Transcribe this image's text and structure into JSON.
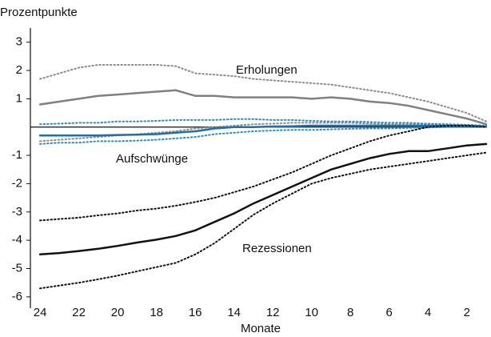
{
  "chart_data": {
    "type": "line",
    "y_label": "Prozentpunkte",
    "x_label": "Monate",
    "x": [
      24,
      23,
      22,
      21,
      20,
      19,
      18,
      17,
      16,
      15,
      14,
      13,
      12,
      11,
      10,
      9,
      8,
      7,
      6,
      5,
      4,
      3,
      2,
      1
    ],
    "xlim": [
      24.5,
      1
    ],
    "xticks": [
      24,
      22,
      20,
      18,
      16,
      14,
      12,
      10,
      8,
      6,
      4,
      2
    ],
    "ylim": [
      -6.4,
      3.5
    ],
    "yticks": [
      3,
      2,
      1,
      -1,
      -2,
      -3,
      -4,
      -5,
      -6
    ],
    "series": [
      {
        "color": "#8c8c8c",
        "style": "dotted",
        "values": [
          1.7,
          1.9,
          2.1,
          2.2,
          2.2,
          2.2,
          2.2,
          2.15,
          1.9,
          1.85,
          1.8,
          1.7,
          1.65,
          1.6,
          1.55,
          1.5,
          1.4,
          1.3,
          1.2,
          1.05,
          0.9,
          0.7,
          0.5,
          0.2
        ]
      },
      {
        "color": "#8c8c8c",
        "style": "dotted",
        "values": [
          -0.5,
          -0.45,
          -0.4,
          -0.35,
          -0.3,
          -0.25,
          -0.2,
          -0.15,
          -0.05,
          0,
          0.05,
          0.1,
          0.12,
          0.15,
          0.15,
          0.15,
          0.15,
          0.12,
          0.1,
          0.1,
          0.08,
          0.05,
          0.05,
          0.02
        ]
      },
      {
        "name": "Erholungen",
        "color": "#808080",
        "style": "solid",
        "values": [
          0.8,
          0.9,
          1.0,
          1.1,
          1.15,
          1.2,
          1.25,
          1.3,
          1.1,
          1.1,
          1.05,
          1.05,
          1.05,
          1.05,
          1.0,
          1.05,
          1.0,
          0.9,
          0.85,
          0.75,
          0.6,
          0.45,
          0.3,
          0.1
        ]
      },
      {
        "color": "#2e8bc0",
        "style": "dotted",
        "values": [
          0.1,
          0.12,
          0.15,
          0.15,
          0.2,
          0.2,
          0.22,
          0.25,
          0.25,
          0.25,
          0.28,
          0.28,
          0.25,
          0.25,
          0.22,
          0.2,
          0.2,
          0.18,
          0.15,
          0.15,
          0.12,
          0.1,
          0.08,
          0.05
        ]
      },
      {
        "color": "#2e8bc0",
        "style": "dotted",
        "values": [
          -0.6,
          -0.55,
          -0.55,
          -0.5,
          -0.5,
          -0.48,
          -0.45,
          -0.4,
          -0.35,
          -0.25,
          -0.2,
          -0.15,
          -0.12,
          -0.1,
          -0.1,
          -0.08,
          -0.06,
          -0.05,
          -0.05,
          -0.03,
          -0.02,
          0,
          0,
          0
        ]
      },
      {
        "name": "Aufschwünge",
        "color": "#1f6fa8",
        "style": "solid",
        "values": [
          -0.3,
          -0.3,
          -0.3,
          -0.3,
          -0.28,
          -0.27,
          -0.25,
          -0.2,
          -0.15,
          -0.05,
          0,
          0,
          0.02,
          0.03,
          0.05,
          0.05,
          0.05,
          0.05,
          0.05,
          0.05,
          0.05,
          0.05,
          0.05,
          0.02
        ]
      },
      {
        "color": "#111111",
        "style": "dotted",
        "values": [
          -3.3,
          -3.25,
          -3.2,
          -3.12,
          -3.05,
          -2.95,
          -2.88,
          -2.78,
          -2.65,
          -2.5,
          -2.3,
          -2.1,
          -1.85,
          -1.6,
          -1.3,
          -1.0,
          -0.75,
          -0.5,
          -0.3,
          -0.15,
          0,
          0.05,
          0.05,
          0
        ]
      },
      {
        "color": "#111111",
        "style": "dotted",
        "values": [
          -5.7,
          -5.6,
          -5.5,
          -5.38,
          -5.25,
          -5.1,
          -4.95,
          -4.8,
          -4.5,
          -4.1,
          -3.6,
          -3.1,
          -2.7,
          -2.35,
          -2.0,
          -1.8,
          -1.65,
          -1.5,
          -1.4,
          -1.3,
          -1.2,
          -1.1,
          -1.0,
          -0.9
        ]
      },
      {
        "name": "Rezessionen",
        "color": "#111111",
        "style": "solid",
        "values": [
          -4.5,
          -4.45,
          -4.38,
          -4.3,
          -4.2,
          -4.08,
          -3.98,
          -3.85,
          -3.65,
          -3.35,
          -3.05,
          -2.7,
          -2.4,
          -2.1,
          -1.8,
          -1.5,
          -1.3,
          -1.1,
          -0.95,
          -0.85,
          -0.85,
          -0.75,
          -0.65,
          -0.6
        ]
      }
    ]
  }
}
